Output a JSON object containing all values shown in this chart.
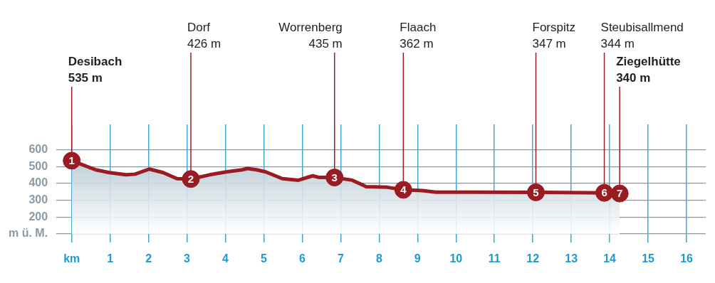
{
  "chart_data": {
    "type": "area",
    "xlim": [
      -0.4,
      16.5
    ],
    "ylim": [
      50,
      750
    ],
    "xticks": [
      {
        "value": 0,
        "label": "km"
      },
      1,
      2,
      3,
      4,
      5,
      6,
      7,
      8,
      9,
      10,
      11,
      12,
      13,
      14,
      15,
      16
    ],
    "yticks": [
      {
        "value": 100,
        "label": "m ü. M."
      },
      200,
      300,
      400,
      500,
      600
    ],
    "grid": true,
    "legend": false,
    "series": [
      {
        "type": "area",
        "color": "#9b1b22",
        "x": [
          0,
          0.62,
          0.98,
          1.41,
          1.65,
          2.02,
          2.38,
          2.74,
          3.1,
          3.59,
          4.02,
          4.44,
          4.57,
          4.81,
          5.05,
          5.48,
          5.9,
          6.27,
          6.45,
          6.84,
          7.3,
          7.66,
          8.21,
          8.63,
          9.12,
          9.48,
          10.46,
          12.08,
          13.86,
          14.26
        ],
        "values": [
          535,
          481,
          464,
          451,
          455,
          485,
          464,
          428,
          426,
          451,
          468,
          481,
          488,
          481,
          468,
          428,
          419,
          445,
          435,
          435,
          419,
          381,
          377,
          362,
          357,
          348,
          348,
          347,
          344,
          340
        ]
      },
      {
        "type": "scatter",
        "color": "#9b1b22",
        "marker": "circle",
        "x": [
          0,
          3.1,
          6.84,
          8.63,
          12.08,
          13.86,
          14.26
        ],
        "values": [
          535,
          426,
          435,
          362,
          347,
          344,
          340
        ]
      }
    ],
    "ref_lines": [
      {
        "axis": "x",
        "value": 0,
        "label": "Desibach\n535 m",
        "color": "#9b1b22"
      },
      {
        "axis": "x",
        "value": 3.1,
        "label": "Dorf\n426 m",
        "color": "#9b1b22"
      },
      {
        "axis": "x",
        "value": 6.84,
        "label": "Worrenberg\n435 m",
        "color": "#9b1b22"
      },
      {
        "axis": "x",
        "value": 8.63,
        "label": "Flaach\n362 m",
        "color": "#9b1b22"
      },
      {
        "axis": "x",
        "value": 12.08,
        "label": "Forspitz\n347 m",
        "color": "#9b1b22"
      },
      {
        "axis": "x",
        "value": 13.86,
        "label": "Steubisallmend\n344 m",
        "color": "#9b1b22"
      },
      {
        "axis": "x",
        "value": 14.26,
        "label": "Ziegelhütte\n340 m",
        "color": "#9b1b22"
      }
    ],
    "annotations": [
      {
        "text": "1",
        "x": 0,
        "y": 535
      },
      {
        "text": "2",
        "x": 3.1,
        "y": 426
      },
      {
        "text": "3",
        "x": 6.84,
        "y": 435
      },
      {
        "text": "4",
        "x": 8.63,
        "y": 362
      },
      {
        "text": "5",
        "x": 12.08,
        "y": 347
      },
      {
        "text": "6",
        "x": 13.86,
        "y": 344
      },
      {
        "text": "7",
        "x": 14.26,
        "y": 340
      }
    ]
  }
}
